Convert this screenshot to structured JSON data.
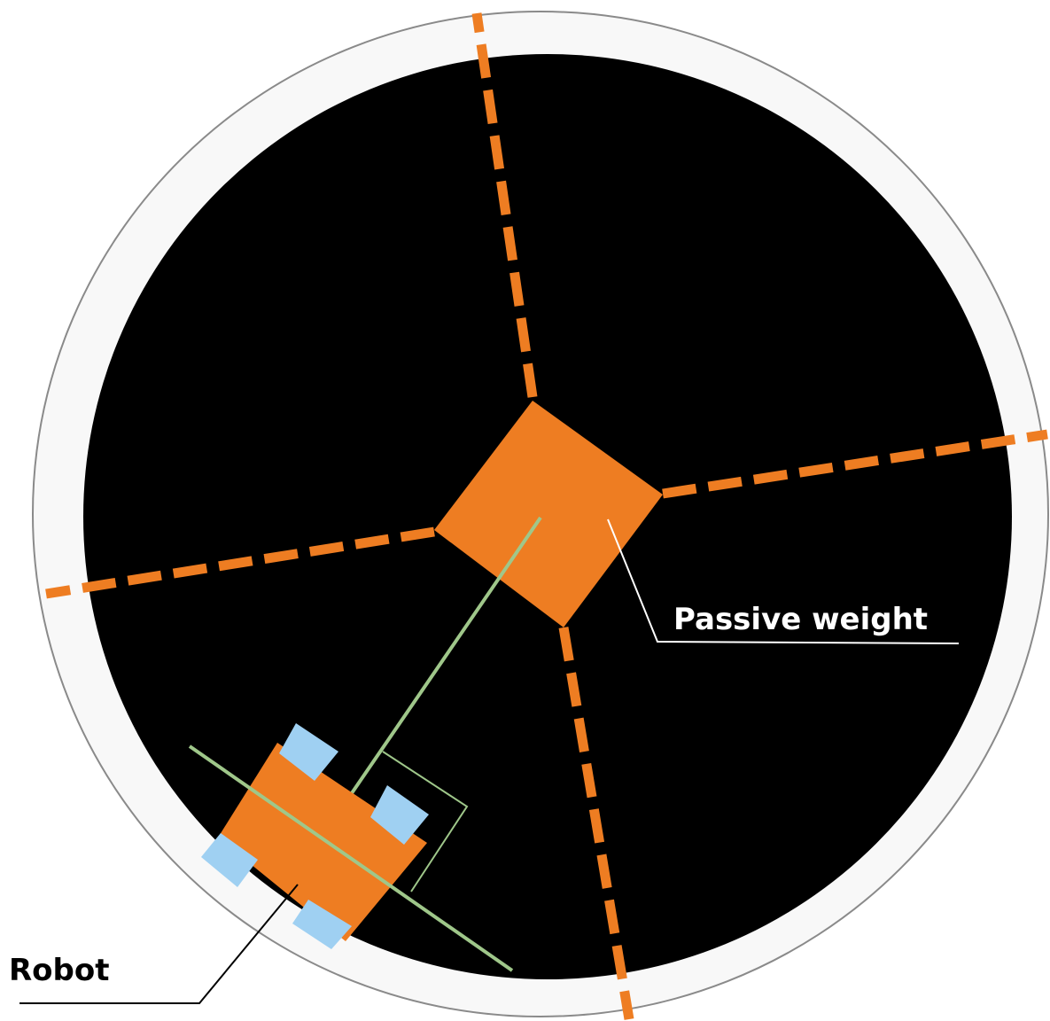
{
  "labels": {
    "passive_weight": "Passive weight",
    "robot": "Robot"
  },
  "colors": {
    "background": "#ffffff",
    "arena_outline": "#8a8a8a",
    "arena_border": "#f8f8f8",
    "arena_floor": "#000000",
    "orange": "#ee7d22",
    "wheel_blue": "#9fd0f2",
    "axis_green": "#9fc78a",
    "callout_white": "#ffffff",
    "callout_black": "#000000"
  }
}
